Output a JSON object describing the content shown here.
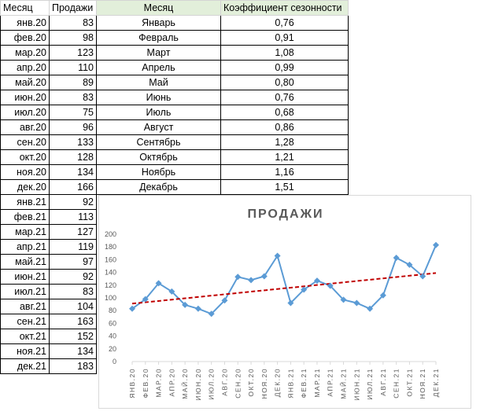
{
  "table": {
    "headers": [
      "Месяц",
      "Продажи",
      "Месяц",
      "Коэффициент сезонности"
    ],
    "rows": [
      {
        "date": "янв.20",
        "sales": "83",
        "month": "Январь",
        "coef": "0,76"
      },
      {
        "date": "фев.20",
        "sales": "98",
        "month": "Февраль",
        "coef": "0,91"
      },
      {
        "date": "мар.20",
        "sales": "123",
        "month": "Март",
        "coef": "1,08"
      },
      {
        "date": "апр.20",
        "sales": "110",
        "month": "Апрель",
        "coef": "0,99"
      },
      {
        "date": "май.20",
        "sales": "89",
        "month": "Май",
        "coef": "0,80"
      },
      {
        "date": "июн.20",
        "sales": "83",
        "month": "Июнь",
        "coef": "0,76"
      },
      {
        "date": "июл.20",
        "sales": "75",
        "month": "Июль",
        "coef": "0,68"
      },
      {
        "date": "авг.20",
        "sales": "96",
        "month": "Август",
        "coef": "0,86"
      },
      {
        "date": "сен.20",
        "sales": "133",
        "month": "Сентябрь",
        "coef": "1,28"
      },
      {
        "date": "окт.20",
        "sales": "128",
        "month": "Октябрь",
        "coef": "1,21"
      },
      {
        "date": "ноя.20",
        "sales": "134",
        "month": "Ноябрь",
        "coef": "1,16"
      },
      {
        "date": "дек.20",
        "sales": "166",
        "month": "Декабрь",
        "coef": "1,51"
      },
      {
        "date": "янв.21",
        "sales": "92"
      },
      {
        "date": "фев.21",
        "sales": "113"
      },
      {
        "date": "мар.21",
        "sales": "127"
      },
      {
        "date": "апр.21",
        "sales": "119"
      },
      {
        "date": "май.21",
        "sales": "97"
      },
      {
        "date": "июн.21",
        "sales": "92"
      },
      {
        "date": "июл.21",
        "sales": "83"
      },
      {
        "date": "авг.21",
        "sales": "104"
      },
      {
        "date": "сен.21",
        "sales": "163"
      },
      {
        "date": "окт.21",
        "sales": "152"
      },
      {
        "date": "ноя.21",
        "sales": "134"
      },
      {
        "date": "дек.21",
        "sales": "183"
      }
    ]
  },
  "chart_data": {
    "type": "line",
    "title": "ПРОДАЖИ",
    "categories": [
      "ЯНВ.20",
      "ФЕВ.20",
      "МАР.20",
      "АПР.20",
      "МАЙ.20",
      "ИЮН.20",
      "ИЮЛ.20",
      "АВГ.20",
      "СЕН.20",
      "ОКТ.20",
      "НОЯ.20",
      "ДЕК.20",
      "ЯНВ.21",
      "ФЕВ.21",
      "МАР.21",
      "АПР.21",
      "МАЙ.21",
      "ИЮН.21",
      "ИЮЛ.21",
      "АВГ.21",
      "СЕН.21",
      "ОКТ.21",
      "НОЯ.21",
      "ДЕК.21"
    ],
    "series": [
      {
        "values": [
          83,
          98,
          123,
          110,
          89,
          83,
          75,
          96,
          133,
          128,
          134,
          166,
          92,
          113,
          127,
          119,
          97,
          92,
          83,
          104,
          163,
          152,
          134,
          183
        ],
        "color": "#5b9bd5"
      }
    ],
    "trendline": {
      "type": "linear",
      "color": "#c00000",
      "style": "dashed",
      "start": 91,
      "end": 139
    },
    "ylim": [
      0,
      200
    ],
    "yticks": [
      "0",
      "20",
      "40",
      "60",
      "80",
      "100",
      "120",
      "140",
      "160",
      "180",
      "200"
    ],
    "grid": false,
    "legend": "none"
  }
}
